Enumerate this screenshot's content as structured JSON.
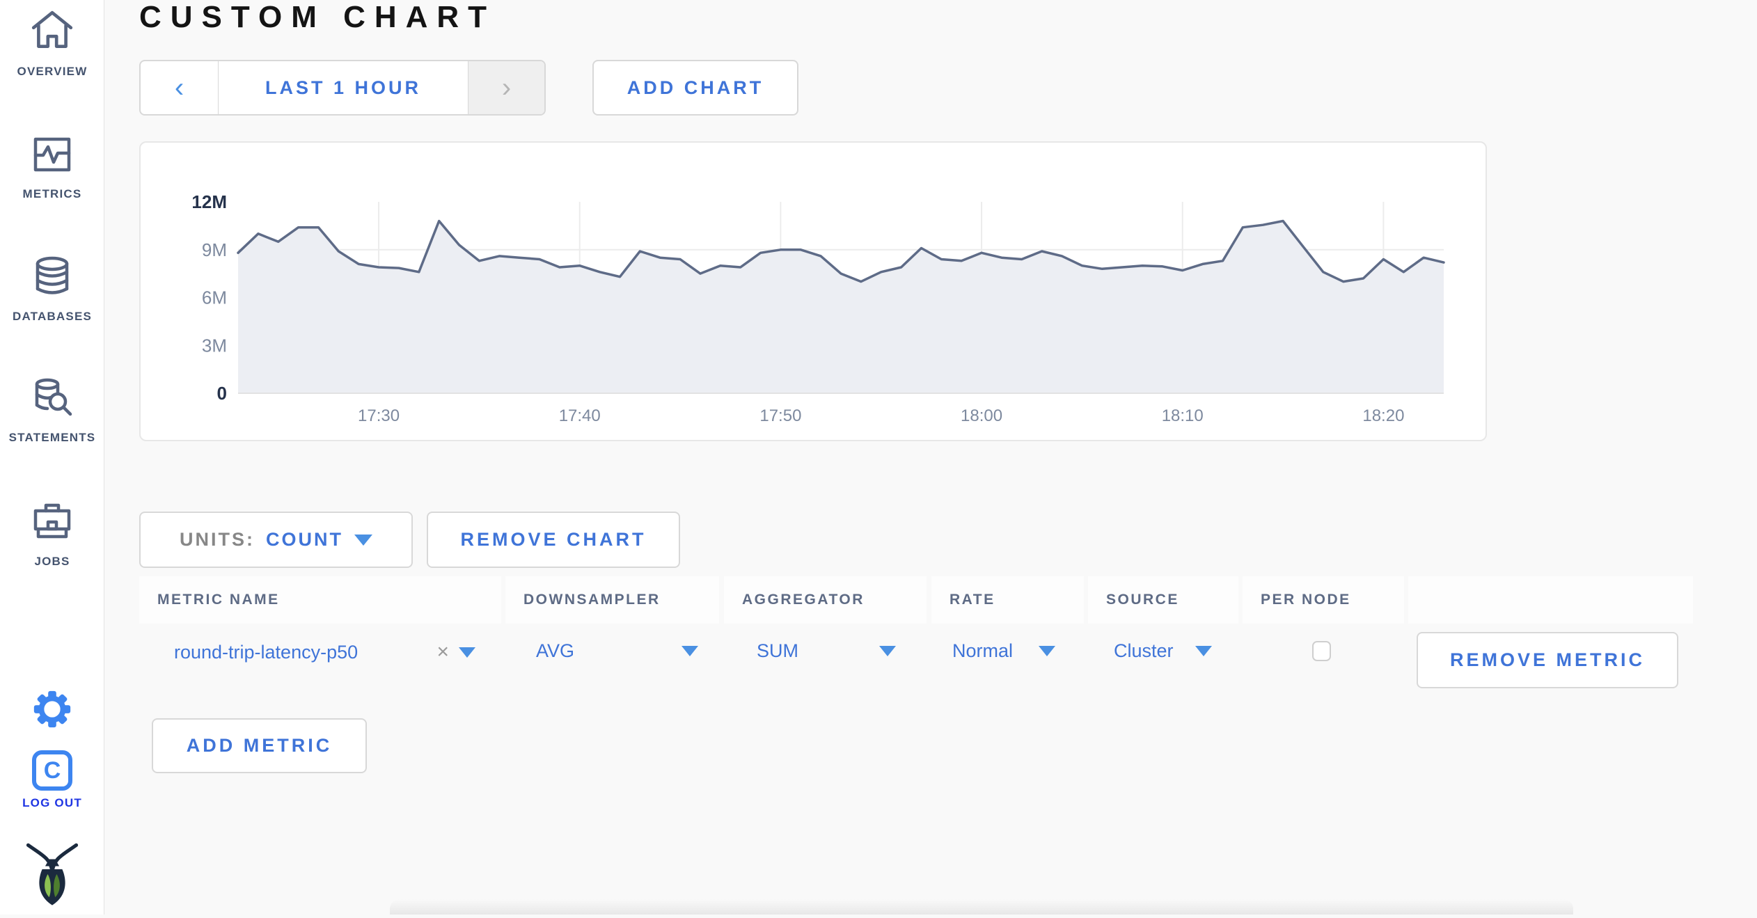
{
  "header": {
    "title": "CUSTOM CHART"
  },
  "sidebar": {
    "items": [
      {
        "label": "OVERVIEW"
      },
      {
        "label": "METRICS"
      },
      {
        "label": "DATABASES"
      },
      {
        "label": "STATEMENTS"
      },
      {
        "label": "JOBS"
      }
    ],
    "logout_label": "LOG OUT",
    "avatar_letter": "C"
  },
  "toolbar": {
    "prev_icon": "‹",
    "timescale_label": "LAST 1 HOUR",
    "next_icon": "›",
    "add_chart_label": "ADD CHART"
  },
  "units": {
    "label": "UNITS:",
    "value": "COUNT"
  },
  "actions": {
    "remove_chart_label": "REMOVE CHART",
    "remove_metric_label": "REMOVE METRIC",
    "add_metric_label": "ADD METRIC"
  },
  "table": {
    "columns": [
      "METRIC NAME",
      "DOWNSAMPLER",
      "AGGREGATOR",
      "RATE",
      "SOURCE",
      "PER NODE"
    ],
    "rows": [
      {
        "metric_name": "round-trip-latency-p50",
        "clear_icon": "×",
        "downsampler": "AVG",
        "aggregator": "SUM",
        "rate": "Normal",
        "source": "Cluster",
        "per_node_checked": false
      }
    ]
  },
  "chart_data": {
    "type": "area",
    "title": "",
    "xlabel": "",
    "ylabel": "",
    "units": "count",
    "ylim_millions": [
      0,
      12
    ],
    "grid": true,
    "legend": "none",
    "line_color": "#5e6b87",
    "fill_color": "#eceef3",
    "grid_color": "#ececec",
    "tick_color": "#7d899e",
    "tick_edge_color": "#25324b",
    "x_start_label": "17:23",
    "x_total_minutes": 60,
    "xticks": [
      {
        "label": "17:30",
        "minute_offset": 7
      },
      {
        "label": "17:40",
        "minute_offset": 17
      },
      {
        "label": "17:50",
        "minute_offset": 27
      },
      {
        "label": "18:00",
        "minute_offset": 37
      },
      {
        "label": "18:10",
        "minute_offset": 47
      },
      {
        "label": "18:20",
        "minute_offset": 57
      }
    ],
    "yticks": [
      {
        "label": "0",
        "value_millions": 0
      },
      {
        "label": "3M",
        "value_millions": 3
      },
      {
        "label": "6M",
        "value_millions": 6
      },
      {
        "label": "9M",
        "value_millions": 9
      },
      {
        "label": "12M",
        "value_millions": 12
      }
    ],
    "series": [
      {
        "name": "round-trip-latency-p50",
        "values_millions": [
          8.8,
          10.0,
          9.5,
          10.4,
          10.4,
          8.9,
          8.1,
          7.9,
          7.85,
          7.6,
          10.8,
          9.3,
          8.3,
          8.6,
          8.5,
          8.4,
          7.9,
          8.0,
          7.6,
          7.3,
          8.9,
          8.5,
          8.4,
          7.5,
          8.0,
          7.9,
          8.8,
          9.0,
          9.0,
          8.6,
          7.5,
          7.0,
          7.6,
          7.9,
          9.1,
          8.4,
          8.3,
          8.8,
          8.5,
          8.4,
          8.9,
          8.6,
          8.0,
          7.8,
          7.9,
          8.0,
          7.95,
          7.7,
          8.1,
          8.3,
          10.4,
          10.55,
          10.8,
          9.2,
          7.6,
          7.0,
          7.2,
          8.4,
          7.6,
          8.5,
          8.2
        ]
      }
    ]
  },
  "colors": {
    "accent_blue": "#3f74d8",
    "bright_blue": "#3d85f0",
    "logout_blue": "#1f35e3",
    "sidebar_text": "#44536e",
    "page_bg": "#f9f9f9"
  }
}
